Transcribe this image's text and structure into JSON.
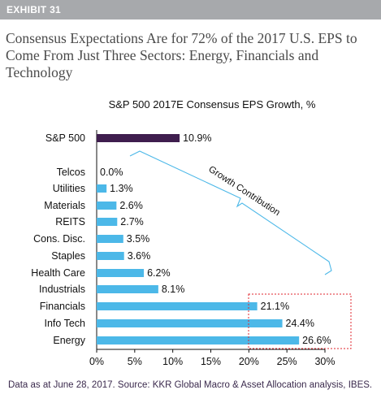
{
  "exhibit": {
    "label": "EXHIBIT 31"
  },
  "headline": "Consensus Expectations Are for 72% of the 2017 U.S. EPS to Come From Just Three Sectors: Energy, Financials and Technology",
  "footnote": "Data as at June 28, 2017. Source: KKR Global Macro & Asset Allocation analysis, IBES.",
  "colors": {
    "header_bar": "#a7a9ac",
    "total_bar": "#3f1e4e",
    "sector_bar": "#4cb8e8",
    "bracket": "#4cb8e8",
    "highlight_box": "#e2262c"
  },
  "chart_data": {
    "type": "bar",
    "orientation": "horizontal",
    "title": "S&P 500 2017E Consensus EPS Growth, %",
    "categories": [
      "S&P 500",
      "Telcos",
      "Utilities",
      "Materials",
      "REITS",
      "Cons. Disc.",
      "Staples",
      "Health Care",
      "Industrials",
      "Financials",
      "Info Tech",
      "Energy"
    ],
    "values": [
      10.9,
      0.0,
      1.3,
      2.6,
      2.7,
      3.5,
      3.6,
      6.2,
      8.1,
      21.1,
      24.4,
      26.6
    ],
    "value_labels": [
      "10.9%",
      "0.0%",
      "1.3%",
      "2.6%",
      "2.7%",
      "3.5%",
      "3.6%",
      "6.2%",
      "8.1%",
      "21.1%",
      "24.4%",
      "26.6%"
    ],
    "xlim": [
      0,
      30
    ],
    "x_ticks": [
      0,
      5,
      10,
      15,
      20,
      25,
      30
    ],
    "x_tick_labels": [
      "0%",
      "5%",
      "10%",
      "15%",
      "20%",
      "25%",
      "30%"
    ],
    "grid": false,
    "legend": "none",
    "annotations": {
      "bracket_label": "Growth Contribution",
      "highlighted_categories": [
        "Financials",
        "Info Tech",
        "Energy"
      ]
    }
  }
}
